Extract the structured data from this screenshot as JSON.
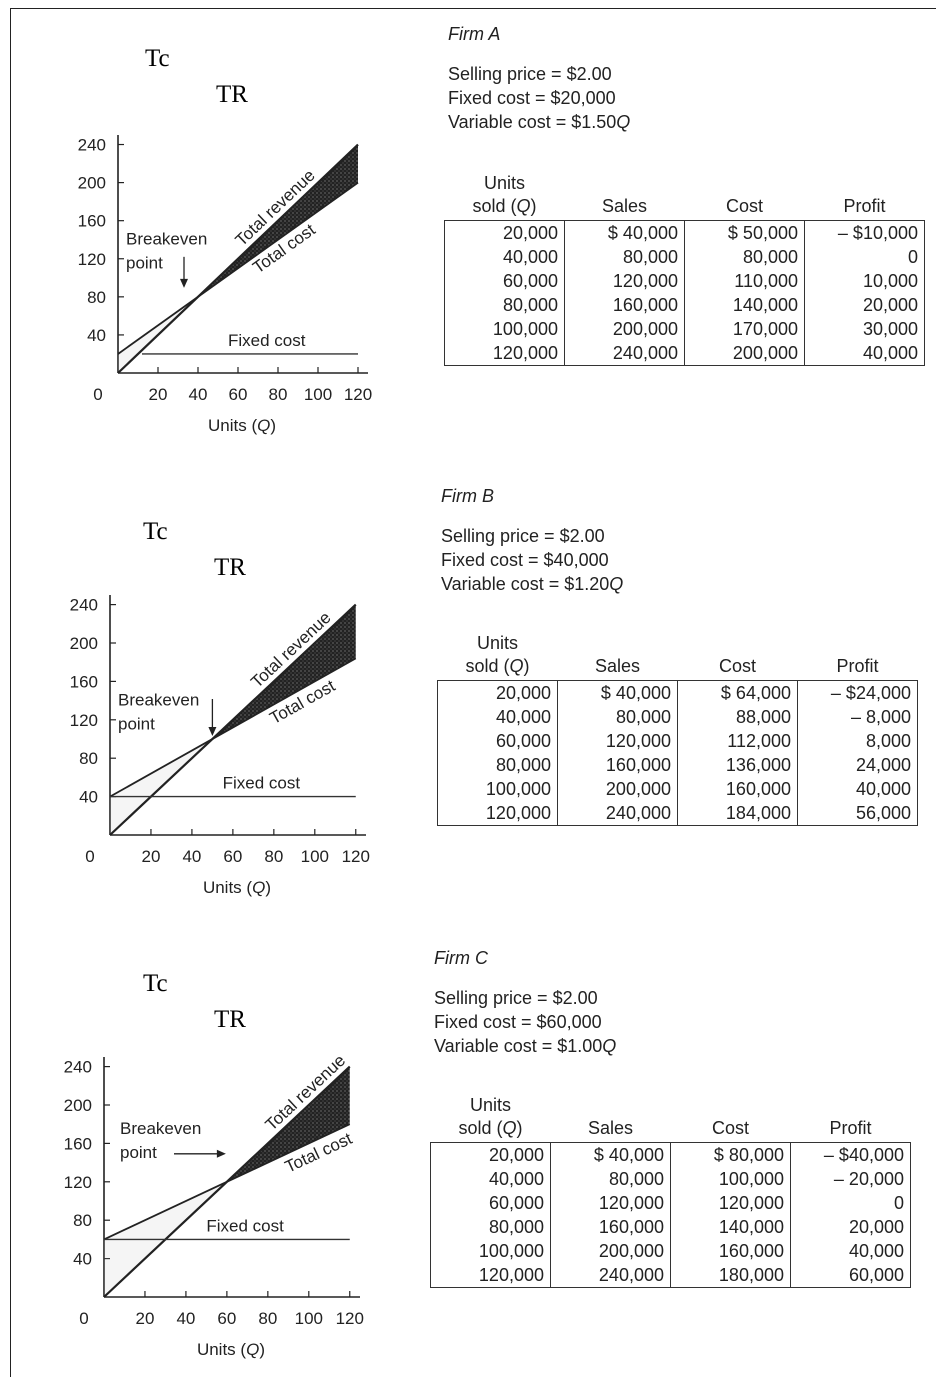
{
  "firms": [
    {
      "name": "Firm A",
      "left_labels": {
        "tc": "Tc",
        "tr": "TR"
      },
      "info": {
        "price": "Selling price = $2.00",
        "fixed": "Fixed cost = $20,000",
        "variable": "Variable cost = $1.50Q"
      },
      "table": {
        "headers": [
          "Units\nsold (Q)",
          "Sales",
          "Cost",
          "Profit"
        ],
        "rows": [
          [
            "20,000",
            "$ 40,000",
            "$ 50,000",
            "– $10,000"
          ],
          [
            "40,000",
            "80,000",
            "80,000",
            "0"
          ],
          [
            "60,000",
            "120,000",
            "110,000",
            "10,000"
          ],
          [
            "80,000",
            "160,000",
            "140,000",
            "20,000"
          ],
          [
            "100,000",
            "200,000",
            "170,000",
            "30,000"
          ],
          [
            "120,000",
            "240,000",
            "200,000",
            "40,000"
          ]
        ]
      },
      "chart_data": {
        "type": "line",
        "xlabel": "Units (Q)",
        "xlim": [
          0,
          125
        ],
        "ylim": [
          0,
          250
        ],
        "xticks": [
          0,
          20,
          40,
          60,
          80,
          100,
          120
        ],
        "yticks": [
          40,
          80,
          120,
          160,
          200,
          240
        ],
        "series": [
          {
            "name": "Total revenue",
            "x": [
              0,
              125
            ],
            "y": [
              0,
              250
            ]
          },
          {
            "name": "Total cost",
            "x": [
              0,
              125
            ],
            "y": [
              20,
              207.5
            ]
          },
          {
            "name": "Fixed cost",
            "x": [
              0,
              125
            ],
            "y": [
              20,
              20
            ]
          }
        ],
        "breakeven": [
          40,
          80
        ],
        "annotations": {
          "breakeven": "Breakeven\npoint",
          "revenue": "Total revenue",
          "cost": "Total cost",
          "fixed": "Fixed cost"
        }
      }
    },
    {
      "name": "Firm B",
      "left_labels": {
        "tc": "Tc",
        "tr": "TR"
      },
      "info": {
        "price": "Selling price = $2.00",
        "fixed": "Fixed cost = $40,000",
        "variable": "Variable cost = $1.20Q"
      },
      "table": {
        "headers": [
          "Units\nsold (Q)",
          "Sales",
          "Cost",
          "Profit"
        ],
        "rows": [
          [
            "20,000",
            "$ 40,000",
            "$ 64,000",
            "– $24,000"
          ],
          [
            "40,000",
            "80,000",
            "88,000",
            "– 8,000"
          ],
          [
            "60,000",
            "120,000",
            "112,000",
            "8,000"
          ],
          [
            "80,000",
            "160,000",
            "136,000",
            "24,000"
          ],
          [
            "100,000",
            "200,000",
            "160,000",
            "40,000"
          ],
          [
            "120,000",
            "240,000",
            "184,000",
            "56,000"
          ]
        ]
      },
      "chart_data": {
        "type": "line",
        "xlabel": "Units (Q)",
        "xlim": [
          0,
          125
        ],
        "ylim": [
          0,
          250
        ],
        "xticks": [
          0,
          20,
          40,
          60,
          80,
          100,
          120
        ],
        "yticks": [
          40,
          80,
          120,
          160,
          200,
          240
        ],
        "series": [
          {
            "name": "Total revenue",
            "x": [
              0,
              125
            ],
            "y": [
              0,
              250
            ]
          },
          {
            "name": "Total cost",
            "x": [
              0,
              125
            ],
            "y": [
              40,
              190
            ]
          },
          {
            "name": "Fixed cost",
            "x": [
              0,
              125
            ],
            "y": [
              40,
              40
            ]
          }
        ],
        "breakeven": [
          50,
          100
        ],
        "annotations": {
          "breakeven": "Breakeven\npoint",
          "revenue": "Total revenue",
          "cost": "Total cost",
          "fixed": "Fixed cost"
        }
      }
    },
    {
      "name": "Firm C",
      "left_labels": {
        "tc": "Tc",
        "tr": "TR"
      },
      "info": {
        "price": "Selling price = $2.00",
        "fixed": "Fixed cost = $60,000",
        "variable": "Variable cost = $1.00Q"
      },
      "table": {
        "headers": [
          "Units\nsold (Q)",
          "Sales",
          "Cost",
          "Profit"
        ],
        "rows": [
          [
            "20,000",
            "$ 40,000",
            "$ 80,000",
            "– $40,000"
          ],
          [
            "40,000",
            "80,000",
            "100,000",
            "– 20,000"
          ],
          [
            "60,000",
            "120,000",
            "120,000",
            "0"
          ],
          [
            "80,000",
            "160,000",
            "140,000",
            "20,000"
          ],
          [
            "100,000",
            "200,000",
            "160,000",
            "40,000"
          ],
          [
            "120,000",
            "240,000",
            "180,000",
            "60,000"
          ]
        ]
      },
      "chart_data": {
        "type": "line",
        "xlabel": "Units (Q)",
        "xlim": [
          0,
          125
        ],
        "ylim": [
          0,
          250
        ],
        "xticks": [
          0,
          20,
          40,
          60,
          80,
          100,
          120
        ],
        "yticks": [
          40,
          80,
          120,
          160,
          200,
          240
        ],
        "series": [
          {
            "name": "Total revenue",
            "x": [
              0,
              125
            ],
            "y": [
              0,
              250
            ]
          },
          {
            "name": "Total cost",
            "x": [
              0,
              125
            ],
            "y": [
              60,
              185
            ]
          },
          {
            "name": "Fixed cost",
            "x": [
              0,
              125
            ],
            "y": [
              60,
              60
            ]
          }
        ],
        "breakeven": [
          60,
          120
        ],
        "annotations": {
          "breakeven": "Breakeven\npoint",
          "revenue": "Total revenue",
          "cost": "Total cost",
          "fixed": "Fixed cost"
        }
      }
    }
  ]
}
